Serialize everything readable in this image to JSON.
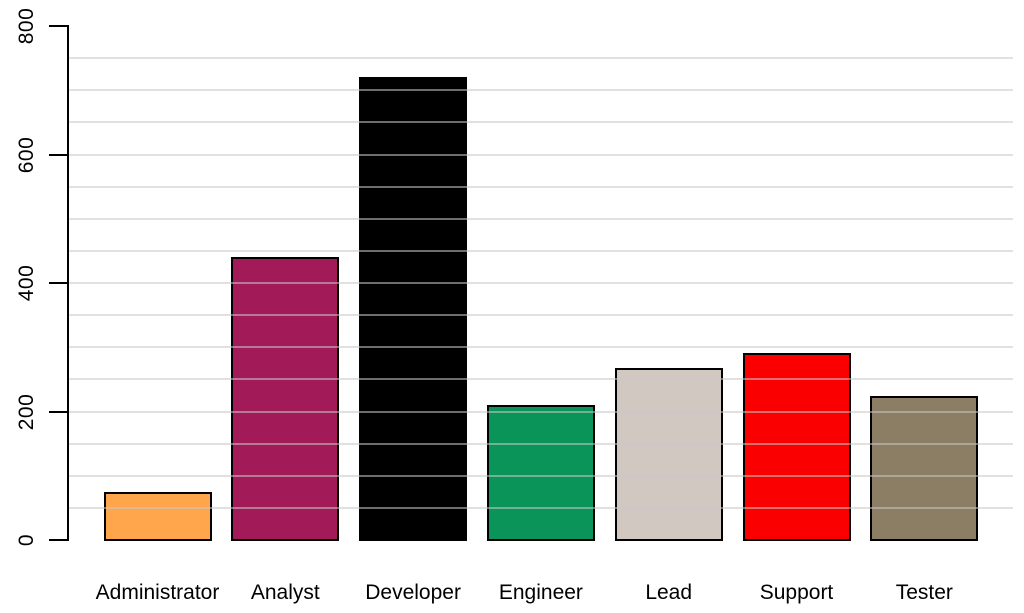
{
  "chart_data": {
    "type": "bar",
    "title": "",
    "xlabel": "",
    "ylabel": "",
    "categories": [
      "Administrator",
      "Analyst",
      "Developer",
      "Engineer",
      "Lead",
      "Support",
      "Tester"
    ],
    "values": [
      74,
      440,
      720,
      210,
      268,
      291,
      224
    ],
    "bar_colors": [
      "#FFA64D",
      "#A21A58",
      "#000000",
      "#0B9459",
      "#D2C8C2",
      "#FB0000",
      "#8C7E64"
    ],
    "bar_border_color": "#000000",
    "ylim": [
      0,
      800
    ],
    "yticks": [
      0,
      200,
      400,
      600,
      800
    ],
    "grid": {
      "on": true,
      "interval": 50,
      "color": "#E2E2E2",
      "position": "horizontal, drawn over bars"
    },
    "legend": "none",
    "background": "#FFFFFF",
    "axis_color": "#000000"
  }
}
